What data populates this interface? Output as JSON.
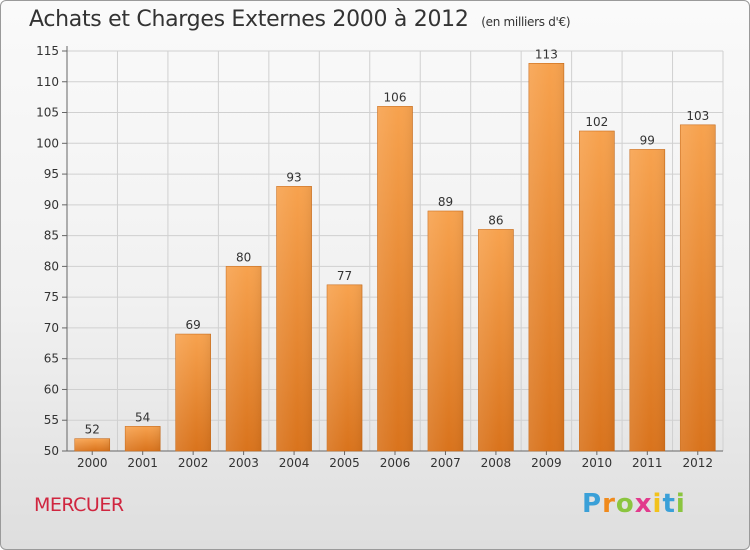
{
  "chart_data": {
    "type": "bar",
    "title": "Achats et Charges Externes 2000 à 2012",
    "subtitle": "(en milliers d'€)",
    "categories": [
      "2000",
      "2001",
      "2002",
      "2003",
      "2004",
      "2005",
      "2006",
      "2007",
      "2008",
      "2009",
      "2010",
      "2011",
      "2012"
    ],
    "values": [
      52,
      54,
      69,
      80,
      93,
      77,
      106,
      89,
      86,
      113,
      102,
      99,
      103
    ],
    "xlabel": "",
    "ylabel": "",
    "ylim": [
      50,
      115
    ],
    "yticks": [
      50,
      55,
      60,
      65,
      70,
      75,
      80,
      85,
      90,
      95,
      100,
      105,
      110,
      115
    ],
    "grid": true,
    "bar_color": "#f08a2c"
  },
  "footer": {
    "town": "MERCUER",
    "logo": "Proxiti",
    "town_color": "#d0253f"
  }
}
